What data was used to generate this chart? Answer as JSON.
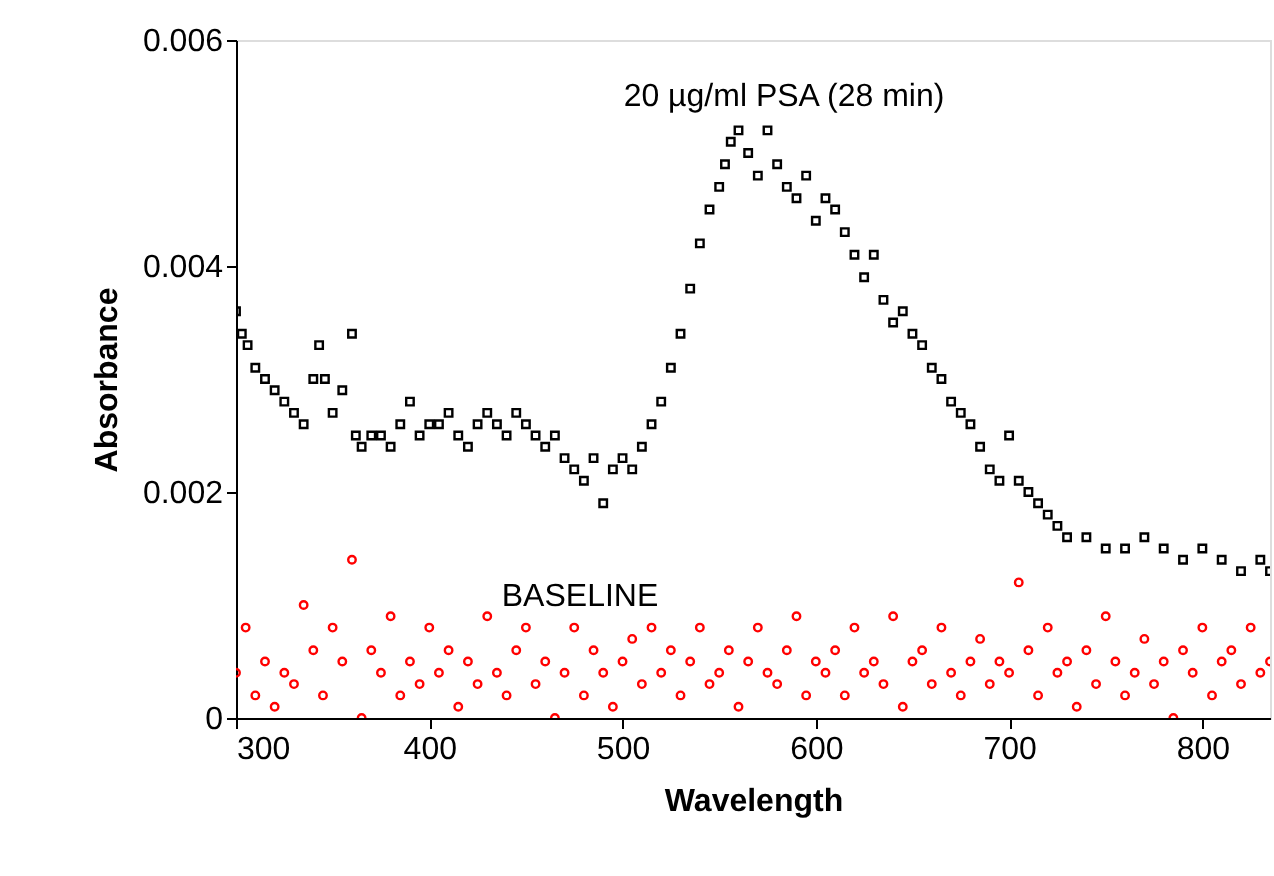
{
  "chart_data": {
    "type": "scatter",
    "xlabel": "Wavelength",
    "ylabel": "Absorbance",
    "xlim": [
      300,
      835
    ],
    "ylim": [
      0,
      0.006
    ],
    "xticks": [
      300,
      400,
      500,
      600,
      700,
      800
    ],
    "yticks": [
      0,
      {
        "value": 0.002,
        "label": "0.002"
      },
      {
        "value": 0.004,
        "label": "0.004"
      },
      {
        "value": 0.006,
        "label": "0.006"
      }
    ],
    "grid": false,
    "annotations": [
      "20 µg/ml PSA (28 min)",
      "BASELINE"
    ],
    "series": [
      {
        "color": "#000000",
        "marker": "square",
        "x": [
          300,
          303,
          306,
          310,
          315,
          320,
          325,
          330,
          335,
          340,
          343,
          346,
          350,
          355,
          360,
          362,
          365,
          370,
          375,
          380,
          385,
          390,
          395,
          400,
          405,
          410,
          415,
          420,
          425,
          430,
          435,
          440,
          445,
          450,
          455,
          460,
          465,
          470,
          475,
          480,
          485,
          490,
          495,
          500,
          505,
          510,
          515,
          520,
          525,
          530,
          535,
          540,
          545,
          550,
          553,
          556,
          560,
          565,
          570,
          575,
          580,
          585,
          590,
          595,
          600,
          605,
          610,
          615,
          620,
          625,
          630,
          635,
          640,
          645,
          650,
          655,
          660,
          665,
          670,
          675,
          680,
          685,
          690,
          695,
          700,
          705,
          710,
          715,
          720,
          725,
          730,
          740,
          750,
          760,
          770,
          780,
          790,
          800,
          810,
          820,
          830,
          835
        ],
        "values": [
          0.0036,
          0.0034,
          0.0033,
          0.0031,
          0.003,
          0.0029,
          0.0028,
          0.0027,
          0.0026,
          0.003,
          0.0033,
          0.003,
          0.0027,
          0.0029,
          0.0034,
          0.0025,
          0.0024,
          0.0025,
          0.0025,
          0.0024,
          0.0026,
          0.0028,
          0.0025,
          0.0026,
          0.0026,
          0.0027,
          0.0025,
          0.0024,
          0.0026,
          0.0027,
          0.0026,
          0.0025,
          0.0027,
          0.0026,
          0.0025,
          0.0024,
          0.0025,
          0.0023,
          0.0022,
          0.0021,
          0.0023,
          0.0019,
          0.0022,
          0.0023,
          0.0022,
          0.0024,
          0.0026,
          0.0028,
          0.0031,
          0.0034,
          0.0038,
          0.0042,
          0.0045,
          0.0047,
          0.0049,
          0.0051,
          0.0052,
          0.005,
          0.0048,
          0.0052,
          0.0049,
          0.0047,
          0.0046,
          0.0048,
          0.0044,
          0.0046,
          0.0045,
          0.0043,
          0.0041,
          0.0039,
          0.0041,
          0.0037,
          0.0035,
          0.0036,
          0.0034,
          0.0033,
          0.0031,
          0.003,
          0.0028,
          0.0027,
          0.0026,
          0.0024,
          0.0022,
          0.0021,
          0.0025,
          0.0021,
          0.002,
          0.0019,
          0.0018,
          0.0017,
          0.0016,
          0.0016,
          0.0015,
          0.0015,
          0.0016,
          0.0015,
          0.0014,
          0.0015,
          0.0014,
          0.0013,
          0.0014,
          0.0013
        ]
      },
      {
        "color": "#ff0000",
        "marker": "circle",
        "x": [
          300,
          305,
          310,
          315,
          320,
          325,
          330,
          335,
          340,
          345,
          350,
          355,
          360,
          365,
          370,
          375,
          380,
          385,
          390,
          395,
          400,
          405,
          410,
          415,
          420,
          425,
          430,
          435,
          440,
          445,
          450,
          455,
          460,
          465,
          470,
          475,
          480,
          485,
          490,
          495,
          500,
          505,
          510,
          515,
          520,
          525,
          530,
          535,
          540,
          545,
          550,
          555,
          560,
          565,
          570,
          575,
          580,
          585,
          590,
          595,
          600,
          605,
          610,
          615,
          620,
          625,
          630,
          635,
          640,
          645,
          650,
          655,
          660,
          665,
          670,
          675,
          680,
          685,
          690,
          695,
          700,
          705,
          710,
          715,
          720,
          725,
          730,
          735,
          740,
          745,
          750,
          755,
          760,
          765,
          770,
          775,
          780,
          785,
          790,
          795,
          800,
          805,
          810,
          815,
          820,
          825,
          830,
          835
        ],
        "values": [
          0.0004,
          0.0008,
          0.0002,
          0.0005,
          0.0001,
          0.0004,
          0.0003,
          0.001,
          0.0006,
          0.0002,
          0.0008,
          0.0005,
          0.0014,
          0.0,
          0.0006,
          0.0004,
          0.0009,
          0.0002,
          0.0005,
          0.0003,
          0.0008,
          0.0004,
          0.0006,
          0.0001,
          0.0005,
          0.0003,
          0.0009,
          0.0004,
          0.0002,
          0.0006,
          0.0008,
          0.0003,
          0.0005,
          0.0,
          0.0004,
          0.0008,
          0.0002,
          0.0006,
          0.0004,
          0.0001,
          0.0005,
          0.0007,
          0.0003,
          0.0008,
          0.0004,
          0.0006,
          0.0002,
          0.0005,
          0.0008,
          0.0003,
          0.0004,
          0.0006,
          0.0001,
          0.0005,
          0.0008,
          0.0004,
          0.0003,
          0.0006,
          0.0009,
          0.0002,
          0.0005,
          0.0004,
          0.0006,
          0.0002,
          0.0008,
          0.0004,
          0.0005,
          0.0003,
          0.0009,
          0.0001,
          0.0005,
          0.0006,
          0.0003,
          0.0008,
          0.0004,
          0.0002,
          0.0005,
          0.0007,
          0.0003,
          0.0005,
          0.0004,
          0.0012,
          0.0006,
          0.0002,
          0.0008,
          0.0004,
          0.0005,
          0.0001,
          0.0006,
          0.0003,
          0.0009,
          0.0005,
          0.0002,
          0.0004,
          0.0007,
          0.0003,
          0.0005,
          0.0,
          0.0006,
          0.0004,
          0.0008,
          0.0002,
          0.0005,
          0.0006,
          0.0003,
          0.0008,
          0.0004,
          0.0005
        ]
      }
    ]
  }
}
